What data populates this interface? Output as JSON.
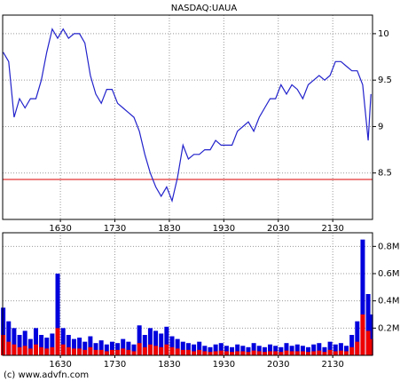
{
  "chart_data": [
    {
      "type": "line",
      "title": "NASDAQ:UAUA",
      "color": "#2222cc",
      "x": [
        15.45,
        15.55,
        15.65,
        15.75,
        15.85,
        15.95,
        16.05,
        16.15,
        16.25,
        16.35,
        16.45,
        16.55,
        16.65,
        16.75,
        16.85,
        16.95,
        17.05,
        17.15,
        17.25,
        17.35,
        17.45,
        17.55,
        17.65,
        17.75,
        17.85,
        17.95,
        18.05,
        18.15,
        18.25,
        18.35,
        18.45,
        18.55,
        18.65,
        18.75,
        18.85,
        18.95,
        19.05,
        19.15,
        19.25,
        19.35,
        19.45,
        19.55,
        19.65,
        19.75,
        19.85,
        19.95,
        20.05,
        20.15,
        20.25,
        20.35,
        20.45,
        20.55,
        20.65,
        20.75,
        20.85,
        20.95,
        21.05,
        21.15,
        21.25,
        21.35,
        21.45,
        21.55,
        21.65,
        21.75,
        21.85,
        21.95,
        22.05,
        22.15,
        22.2
      ],
      "values": [
        9.8,
        9.7,
        9.1,
        9.3,
        9.2,
        9.3,
        9.3,
        9.5,
        9.8,
        10.05,
        9.95,
        10.05,
        9.95,
        10.0,
        10.0,
        9.9,
        9.55,
        9.35,
        9.25,
        9.4,
        9.4,
        9.25,
        9.2,
        9.15,
        9.1,
        8.95,
        8.7,
        8.5,
        8.35,
        8.25,
        8.35,
        8.2,
        8.45,
        8.8,
        8.65,
        8.7,
        8.7,
        8.75,
        8.75,
        8.85,
        8.8,
        8.8,
        8.8,
        8.95,
        9.0,
        9.05,
        8.95,
        9.1,
        9.2,
        9.3,
        9.3,
        9.45,
        9.35,
        9.45,
        9.4,
        9.3,
        9.45,
        9.5,
        9.55,
        9.5,
        9.55,
        9.7,
        9.7,
        9.65,
        9.6,
        9.6,
        9.45,
        8.85,
        9.35
      ],
      "xlim": [
        15.44,
        22.23
      ],
      "xticks": [
        {
          "value": 16.5,
          "label": "1630"
        },
        {
          "value": 17.5,
          "label": "1730"
        },
        {
          "value": 18.5,
          "label": "1830"
        },
        {
          "value": 19.5,
          "label": "1930"
        },
        {
          "value": 20.5,
          "label": "2030"
        },
        {
          "value": 21.5,
          "label": "2130"
        }
      ],
      "ylim": [
        8.0,
        10.2
      ],
      "yticks": [
        8.5,
        9,
        9.5,
        10
      ],
      "grid": true,
      "hline": 8.43,
      "hline_color": "#dd0000"
    },
    {
      "type": "bar",
      "x": [
        15.45,
        15.55,
        15.65,
        15.75,
        15.85,
        15.95,
        16.05,
        16.15,
        16.25,
        16.35,
        16.45,
        16.55,
        16.65,
        16.75,
        16.85,
        16.95,
        17.05,
        17.15,
        17.25,
        17.35,
        17.45,
        17.55,
        17.65,
        17.75,
        17.85,
        17.95,
        18.05,
        18.15,
        18.25,
        18.35,
        18.45,
        18.55,
        18.65,
        18.75,
        18.85,
        18.95,
        19.05,
        19.15,
        19.25,
        19.35,
        19.45,
        19.55,
        19.65,
        19.75,
        19.85,
        19.95,
        20.05,
        20.15,
        20.25,
        20.35,
        20.45,
        20.55,
        20.65,
        20.75,
        20.85,
        20.95,
        21.05,
        21.15,
        21.25,
        21.35,
        21.45,
        21.55,
        21.65,
        21.75,
        21.85,
        21.95,
        22.05,
        22.15,
        22.2
      ],
      "series": [
        {
          "color": "#0000dd",
          "values": [
            350000,
            250000,
            200000,
            150000,
            180000,
            120000,
            200000,
            150000,
            130000,
            160000,
            600000,
            200000,
            150000,
            120000,
            130000,
            100000,
            140000,
            90000,
            110000,
            80000,
            100000,
            90000,
            120000,
            100000,
            80000,
            220000,
            150000,
            200000,
            180000,
            160000,
            210000,
            140000,
            120000,
            100000,
            90000,
            80000,
            100000,
            70000,
            60000,
            80000,
            90000,
            70000,
            60000,
            80000,
            70000,
            60000,
            90000,
            70000,
            60000,
            80000,
            70000,
            60000,
            90000,
            70000,
            80000,
            70000,
            60000,
            80000,
            90000,
            60000,
            100000,
            80000,
            90000,
            70000,
            150000,
            250000,
            850000,
            450000,
            300000
          ]
        },
        {
          "color": "#ee0000",
          "values": [
            150000,
            100000,
            80000,
            60000,
            70000,
            50000,
            80000,
            60000,
            50000,
            60000,
            200000,
            80000,
            60000,
            50000,
            50000,
            40000,
            60000,
            40000,
            40000,
            30000,
            40000,
            40000,
            50000,
            40000,
            30000,
            90000,
            60000,
            80000,
            70000,
            60000,
            80000,
            60000,
            50000,
            40000,
            40000,
            30000,
            40000,
            30000,
            25000,
            30000,
            35000,
            30000,
            25000,
            30000,
            30000,
            25000,
            35000,
            30000,
            25000,
            30000,
            30000,
            25000,
            35000,
            30000,
            30000,
            30000,
            25000,
            30000,
            35000,
            25000,
            40000,
            30000,
            35000,
            30000,
            60000,
            100000,
            300000,
            180000,
            120000
          ]
        }
      ],
      "xlim": [
        15.44,
        22.23
      ],
      "xticks": [
        {
          "value": 16.5,
          "label": "1630"
        },
        {
          "value": 17.5,
          "label": "1730"
        },
        {
          "value": 18.5,
          "label": "1830"
        },
        {
          "value": 19.5,
          "label": "1930"
        },
        {
          "value": 20.5,
          "label": "2030"
        },
        {
          "value": 21.5,
          "label": "2130"
        }
      ],
      "ylim": [
        0,
        900000
      ],
      "yticks": [
        {
          "value": 200000,
          "label": "0.2M"
        },
        {
          "value": 400000,
          "label": "0.4M"
        },
        {
          "value": 600000,
          "label": "0.6M"
        },
        {
          "value": 800000,
          "label": "0.8M"
        }
      ],
      "grid": true
    }
  ],
  "footer": "(c) www.advfn.com"
}
